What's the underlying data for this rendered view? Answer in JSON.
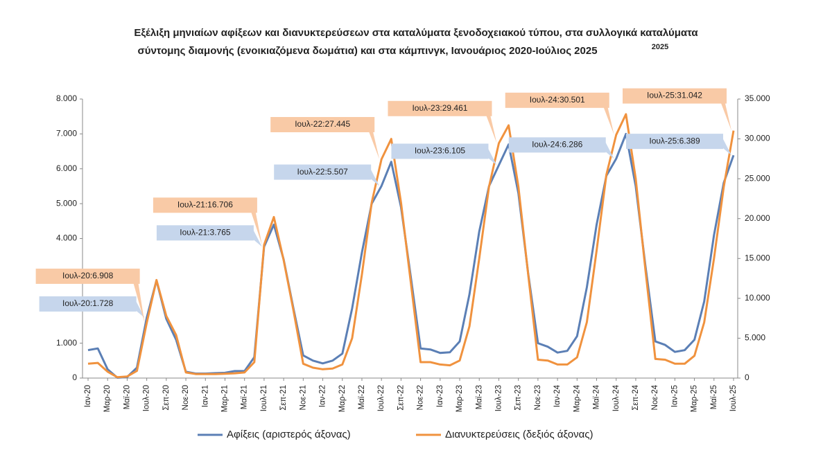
{
  "chart_data": {
    "type": "line",
    "title": [
      "Εξέλιξη μηνιαίων αφίξεων και διανυκτερεύσεων στα καταλύματα ξενοδοχειακού τύπου, στα συλλογικά καταλύματα",
      "σύντομης διαμονής (ενοικιαζόμενα δωμάτια) και στα κάμπινγκ, Ιανουάριος 2020-Ιούλιος 2025"
    ],
    "title_note": "2025",
    "categories": [
      "Ιαν-20",
      null,
      "Μαρ-20",
      null,
      "Μαϊ-20",
      null,
      "Ιουλ-20",
      null,
      "Σεπ-20",
      null,
      "Νοε-20",
      null,
      "Ιαν-21",
      null,
      "Μαρ-21",
      null,
      "Μαϊ-21",
      null,
      "Ιουλ-21",
      null,
      "Σεπ-21",
      null,
      "Νοε-21",
      null,
      "Ιαν-22",
      null,
      "Μαρ-22",
      null,
      "Μαϊ-22",
      null,
      "Ιουλ-22",
      null,
      "Σεπ-22",
      null,
      "Νοε-22",
      null,
      "Ιαν-23",
      null,
      "Μαρ-23",
      null,
      "Μαϊ-23",
      null,
      "Ιουλ-23",
      null,
      "Σεπ-23",
      null,
      "Νοε-23",
      null,
      "Ιαν-24",
      null,
      "Μαρ-24",
      null,
      "Μαϊ-24",
      null,
      "Ιουλ-24",
      null,
      "Σεπ-24",
      null,
      "Νοε-24",
      null,
      "Ιαν-25",
      null,
      "Μαρ-25",
      null,
      "Μαϊ-25",
      null,
      "Ιουλ-25"
    ],
    "series": [
      {
        "name": "Αφίξεις (αριστερός άξονας)",
        "color": "#5b7fb5",
        "axis": "y",
        "values": [
          800,
          850,
          250,
          10,
          30,
          300,
          1728,
          2800,
          1700,
          1100,
          180,
          130,
          130,
          140,
          150,
          200,
          200,
          600,
          3765,
          4400,
          3400,
          2000,
          650,
          500,
          420,
          500,
          700,
          2000,
          3600,
          5000,
          5507,
          6200,
          4900,
          2900,
          850,
          820,
          720,
          740,
          1050,
          2400,
          4200,
          5500,
          6105,
          6700,
          5300,
          3000,
          1000,
          900,
          730,
          780,
          1200,
          2600,
          4400,
          5800,
          6286,
          7000,
          5500,
          3200,
          1050,
          950,
          750,
          800,
          1100,
          2200,
          4100,
          5600,
          6389
        ],
        "value_labels": [
          null,
          null,
          null,
          null,
          null,
          null,
          "Ιουλ-20:1.728",
          null,
          null,
          null,
          null,
          null,
          null,
          null,
          null,
          null,
          null,
          null,
          "Ιουλ-21:3.765",
          null,
          null,
          null,
          null,
          null,
          null,
          null,
          null,
          null,
          null,
          null,
          "Ιουλ-22:5.507",
          null,
          null,
          null,
          null,
          null,
          null,
          null,
          null,
          null,
          null,
          null,
          "Ιουλ-23:6.105",
          null,
          null,
          null,
          null,
          null,
          null,
          null,
          null,
          null,
          null,
          null,
          "Ιουλ-24:6.286",
          null,
          null,
          null,
          null,
          null,
          null,
          null,
          null,
          null,
          null,
          null,
          "Ιουλ-25:6.389"
        ]
      },
      {
        "name": "Διανυκτερεύσεις (δεξιός άξονας)",
        "color": "#f0923e",
        "axis": "y2",
        "values": [
          1800,
          1900,
          800,
          100,
          200,
          900,
          6908,
          12300,
          7800,
          5400,
          700,
          500,
          500,
          500,
          550,
          600,
          700,
          2000,
          16706,
          20200,
          14800,
          8500,
          1800,
          1300,
          1100,
          1200,
          1700,
          5000,
          13000,
          22000,
          27445,
          30000,
          22000,
          12000,
          2000,
          2000,
          1700,
          1600,
          2200,
          6500,
          15000,
          24000,
          29461,
          31700,
          24000,
          13000,
          2300,
          2200,
          1700,
          1700,
          2600,
          7000,
          16000,
          25500,
          30501,
          33100,
          25000,
          13500,
          2400,
          2300,
          1800,
          1800,
          2800,
          7000,
          15000,
          24000,
          31042
        ],
        "value_labels": [
          null,
          null,
          null,
          null,
          null,
          null,
          "Ιουλ-20:6.908",
          null,
          null,
          null,
          null,
          null,
          null,
          null,
          null,
          null,
          null,
          null,
          "Ιουλ-21:16.706",
          null,
          null,
          null,
          null,
          null,
          null,
          null,
          null,
          null,
          null,
          null,
          "Ιουλ-22:27.445",
          null,
          null,
          null,
          null,
          null,
          null,
          null,
          null,
          null,
          null,
          null,
          "Ιουλ-23:29.461",
          null,
          null,
          null,
          null,
          null,
          null,
          null,
          null,
          null,
          null,
          null,
          "Ιουλ-24:30.501",
          null,
          null,
          null,
          null,
          null,
          null,
          null,
          null,
          null,
          null,
          null,
          "Ιουλ-25:31.042"
        ]
      }
    ],
    "ylim": [
      0,
      8000
    ],
    "yticks": [
      0,
      {
        "value": 1000,
        "label": "1.000"
      },
      {
        "value": 2000,
        "label": "2.000"
      },
      {
        "value": 3000,
        "label": "3.000"
      },
      {
        "value": 4000,
        "label": "4.000"
      },
      {
        "value": 5000,
        "label": "5.000"
      },
      {
        "value": 6000,
        "label": "6.000"
      },
      {
        "value": 7000,
        "label": "7.000"
      },
      {
        "value": 8000,
        "label": "8.000"
      }
    ],
    "y2lim": [
      0,
      35000
    ],
    "y2ticks": [
      0,
      {
        "value": 5000,
        "label": "5.000"
      },
      {
        "value": 10000,
        "label": "10.000"
      },
      {
        "value": 15000,
        "label": "15.000"
      },
      {
        "value": 20000,
        "label": "20.000"
      },
      {
        "value": 25000,
        "label": "25.000"
      },
      {
        "value": 30000,
        "label": "30.000"
      },
      {
        "value": 35000,
        "label": "35.000"
      }
    ],
    "legend": "bottom"
  }
}
